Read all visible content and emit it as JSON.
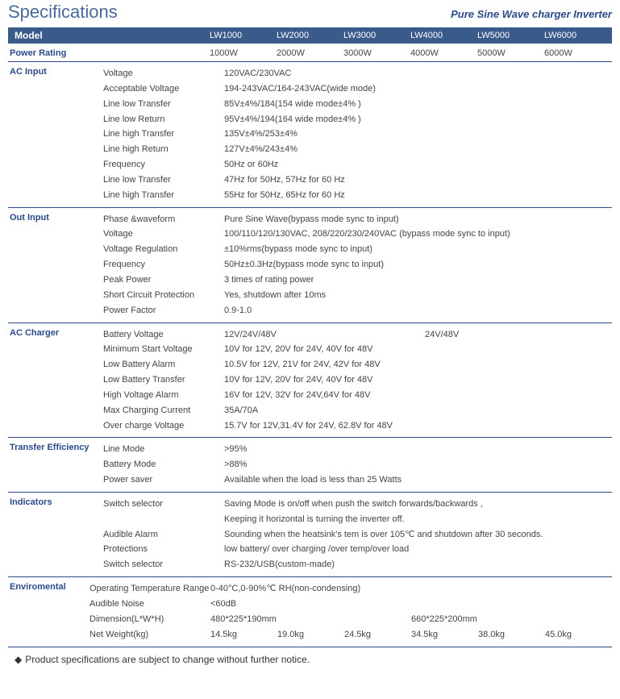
{
  "header": {
    "title": "Specifications",
    "subtitle": "Pure Sine  Wave  charger Inverter"
  },
  "model_bar": {
    "label": "Model",
    "models": [
      "LW1000",
      "LW2000",
      "LW3000",
      "LW4000",
      "LW5000",
      "LW6000"
    ]
  },
  "power_rating": {
    "label": "Power Rating",
    "values": [
      "1000W",
      "2000W",
      "3000W",
      "4000W",
      "5000W",
      "6000W"
    ]
  },
  "sections": {
    "ac_input": {
      "label": "AC Input",
      "rows": [
        {
          "param": "Voltage",
          "value": "120VAC/230VAC"
        },
        {
          "param": "Acceptable Voltage",
          "value": "194-243VAC/164-243VAC(wide mode)"
        },
        {
          "param": "Line low Transfer",
          "value": "85V±4%/184(154 wide mode±4% )"
        },
        {
          "param": "Line low Return",
          "value": "95V±4%/194(164 wide mode±4% )"
        },
        {
          "param": "Line high Transfer",
          "value": "135V±4%/253±4%"
        },
        {
          "param": "Line high Return",
          "value": "127V±4%/243±4%"
        },
        {
          "param": "Frequency",
          "value": "50Hz or 60Hz"
        },
        {
          "param": "Line low Transfer",
          "value": "47Hz for 50Hz, 57Hz for 60 Hz"
        },
        {
          "param": "Line high Transfer",
          "value": "55Hz for 50Hz, 65Hz for 60 Hz"
        }
      ]
    },
    "out_input": {
      "label": "Out Input",
      "rows": [
        {
          "param": "Phase &waveform",
          "value": "Pure Sine Wave(bypass mode sync to input)"
        },
        {
          "param": "Voltage",
          "value": "100/110/120/130VAC, 208/220/230/240VAC (bypass mode sync to input)"
        },
        {
          "param": "Voltage Regulation",
          "value": "±10%rms(bypass mode sync to input)"
        },
        {
          "param": "Frequency",
          "value": "50Hz±0.3Hz(bypass mode sync to input)"
        },
        {
          "param": "Peak Power",
          "value": "3 times of rating power"
        },
        {
          "param": "Short Circuit Protection",
          "value": "Yes, shutdown after 10ms"
        },
        {
          "param": "Power Factor",
          "value": "0.9-1.0"
        }
      ]
    },
    "ac_charger": {
      "label": "AC Charger",
      "rows": [
        {
          "param": "Battery Voltage",
          "left": "12V/24V/48V",
          "right": "24V/48V"
        },
        {
          "param": "Minimum Start Voltage",
          "value": "10V for 12V, 20V for 24V, 40V for 48V"
        },
        {
          "param": "Low Battery Alarm",
          "value": "10.5V for 12V, 21V for 24V, 42V for 48V"
        },
        {
          "param": "Low Battery Transfer",
          "value": "10V for 12V, 20V for 24V, 40V for 48V"
        },
        {
          "param": "High Voltage Alarm",
          "value": "16V for 12V, 32V for 24V,64V for 48V"
        },
        {
          "param": "Max Charging Current",
          "value": "35A/70A"
        },
        {
          "param": "Over charge Voltage",
          "value": "15.7V for 12V,31.4V for 24V, 62.8V for 48V"
        }
      ]
    },
    "transfer": {
      "label": "Transfer Efficiency",
      "rows": [
        {
          "param": "Line Mode",
          "value": ">95%"
        },
        {
          "param": "Battery Mode",
          "value": ">88%"
        },
        {
          "param": "Power saver",
          "value": "Available when the load is less than 25 Watts"
        }
      ]
    },
    "indicators": {
      "label": "Indicators",
      "rows": [
        {
          "param": "Switch selector",
          "value": "Saving Mode is on/off when push the switch forwards/backwards ,"
        },
        {
          "param": "",
          "value": "Keeping it horizontal is turning the inverter off."
        },
        {
          "param": "Audible Alarm",
          "value": "Sounding when the heatsink's tem is over 105℃ and shutdown after 30 seconds."
        },
        {
          "param": "Protections",
          "value": "low battery/ over charging /over temp/over load"
        },
        {
          "param": "Switch selector",
          "value": "RS-232/USB(custom-made)"
        }
      ]
    },
    "enviromental": {
      "label": "Enviromental",
      "op_temp": {
        "param": "Operating Temperature Range",
        "value": "0-40°C,0-90%℃ RH(non-condensing)"
      },
      "noise": {
        "param": "Audible Noise",
        "value": "<60dB"
      },
      "dimension": {
        "param": "Dimension(L*W*H)",
        "left": "480*225*190mm",
        "right": "660*225*200mm"
      },
      "weight": {
        "param": "Net Weight(kg)",
        "values": [
          "14.5kg",
          "19.0kg",
          "24.5kg",
          "34.5kg",
          "38.0kg",
          "45.0kg"
        ]
      }
    }
  },
  "footnote": "Product specifications are subject to change without further notice."
}
